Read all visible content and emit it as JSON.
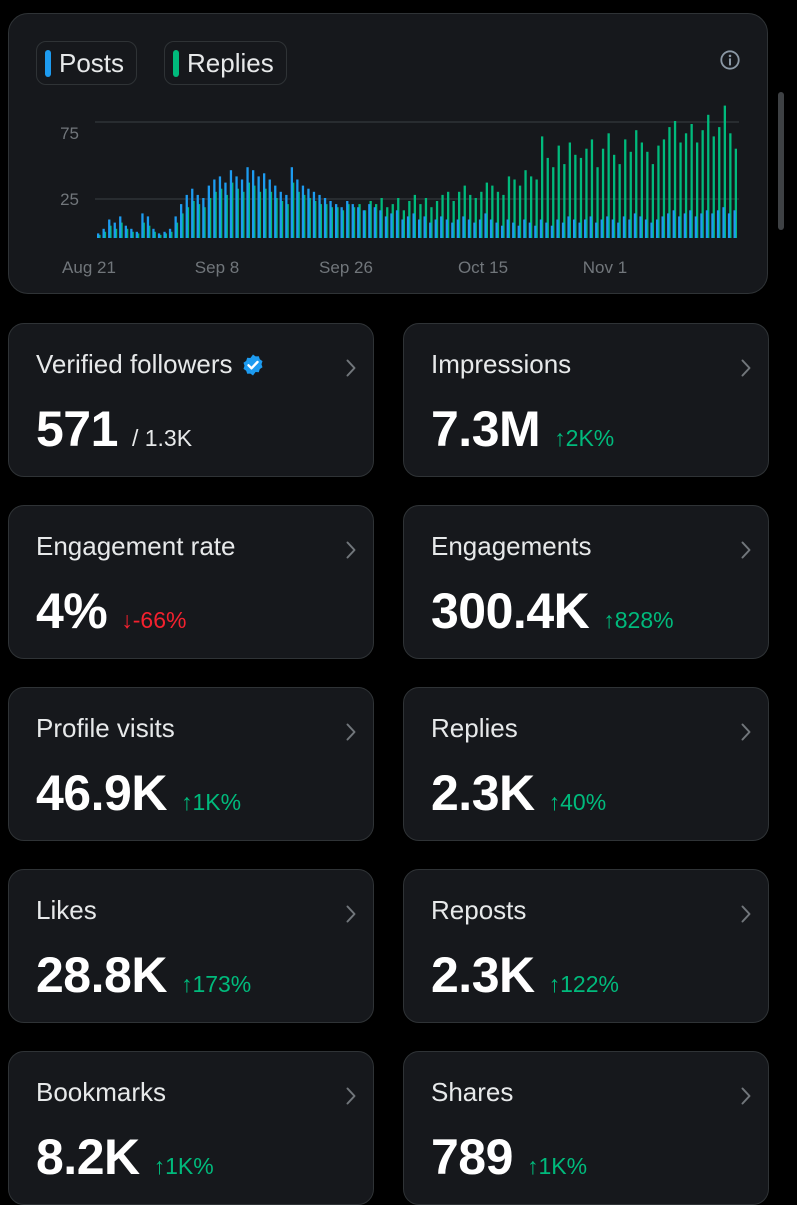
{
  "legend": {
    "posts_label": "Posts",
    "replies_label": "Replies"
  },
  "colors": {
    "posts": "#1d9bf0",
    "replies": "#00ba7c",
    "positive": "#00ba7c",
    "negative": "#f4212e",
    "verified": "#1d9bf0"
  },
  "chart_data": {
    "type": "bar",
    "x_ticks": [
      "Aug 21",
      "Sep 8",
      "Sep 26",
      "Oct 15",
      "Nov 1"
    ],
    "y_ticks": [
      "75",
      "25"
    ],
    "ylim": [
      0,
      90
    ],
    "grid": true,
    "x_start_label": "Aug 21",
    "series": [
      {
        "name": "Posts",
        "values": [
          3,
          6,
          12,
          10,
          14,
          8,
          6,
          4,
          16,
          14,
          6,
          3,
          4,
          6,
          14,
          22,
          28,
          32,
          28,
          26,
          34,
          38,
          40,
          36,
          44,
          40,
          38,
          46,
          44,
          40,
          42,
          38,
          34,
          30,
          28,
          46,
          38,
          34,
          32,
          30,
          28,
          26,
          24,
          22,
          20,
          24,
          22,
          20,
          18,
          22,
          20,
          18,
          14,
          16,
          18,
          12,
          14,
          16,
          12,
          14,
          10,
          12,
          14,
          12,
          10,
          12,
          14,
          12,
          10,
          12,
          16,
          12,
          10,
          8,
          12,
          10,
          8,
          12,
          10,
          8,
          12,
          10,
          8,
          12,
          10,
          14,
          12,
          10,
          12,
          14,
          10,
          12,
          14,
          12,
          10,
          14,
          12,
          16,
          14,
          12,
          10,
          12,
          14,
          16,
          18,
          14,
          16,
          18,
          14,
          16,
          18,
          16,
          18,
          20,
          16,
          18
        ]
      },
      {
        "name": "Replies",
        "values": [
          2,
          4,
          8,
          6,
          10,
          6,
          4,
          3,
          10,
          8,
          4,
          2,
          3,
          4,
          10,
          16,
          20,
          24,
          22,
          20,
          26,
          30,
          32,
          28,
          36,
          32,
          30,
          36,
          34,
          30,
          32,
          30,
          26,
          24,
          22,
          36,
          30,
          28,
          26,
          24,
          22,
          22,
          20,
          20,
          18,
          22,
          20,
          22,
          18,
          24,
          22,
          26,
          20,
          22,
          26,
          18,
          24,
          28,
          22,
          26,
          20,
          24,
          28,
          30,
          24,
          30,
          34,
          28,
          26,
          30,
          36,
          34,
          30,
          28,
          40,
          38,
          34,
          44,
          40,
          38,
          66,
          52,
          46,
          60,
          48,
          62,
          54,
          52,
          58,
          64,
          46,
          58,
          68,
          54,
          48,
          64,
          56,
          70,
          62,
          56,
          48,
          60,
          64,
          72,
          76,
          62,
          68,
          74,
          62,
          70,
          80,
          66,
          72,
          86,
          68,
          58
        ]
      }
    ]
  },
  "tiles": [
    {
      "label": "Verified followers",
      "value": "571",
      "sub": "/ 1.3K",
      "verified": true
    },
    {
      "label": "Impressions",
      "value": "7.3M",
      "change": "2K%",
      "dir": "up"
    },
    {
      "label": "Engagement rate",
      "value": "4%",
      "change": "-66%",
      "dir": "down"
    },
    {
      "label": "Engagements",
      "value": "300.4K",
      "change": "828%",
      "dir": "up"
    },
    {
      "label": "Profile visits",
      "value": "46.9K",
      "change": "1K%",
      "dir": "up"
    },
    {
      "label": "Replies",
      "value": "2.3K",
      "change": "40%",
      "dir": "up"
    },
    {
      "label": "Likes",
      "value": "28.8K",
      "change": "173%",
      "dir": "up"
    },
    {
      "label": "Reposts",
      "value": "2.3K",
      "change": "122%",
      "dir": "up"
    },
    {
      "label": "Bookmarks",
      "value": "8.2K",
      "change": "1K%",
      "dir": "up"
    },
    {
      "label": "Shares",
      "value": "789",
      "change": "1K%",
      "dir": "up"
    }
  ]
}
